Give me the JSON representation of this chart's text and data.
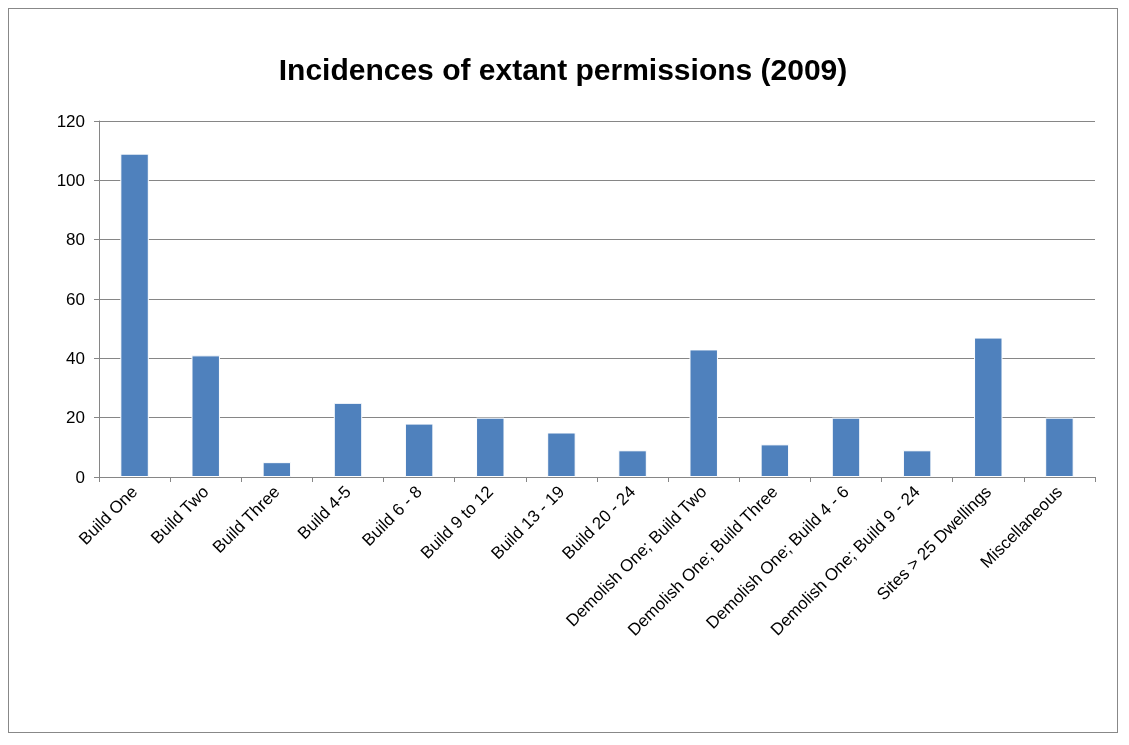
{
  "chart_data": {
    "type": "bar",
    "title": "Incidences of extant permissions (2009)",
    "categories": [
      "Build One",
      "Build Two",
      "Build Three",
      "Build 4-5",
      "Build 6 - 8",
      "Build 9 to 12",
      "Build 13 - 19",
      "Build 20 - 24",
      "Demolish One; Build Two",
      "Demolish One; Build Three",
      "Demolish One; Build 4 - 6",
      "Demolish One; Build 9 - 24",
      "Sites > 25 Dwellings",
      "Miscellaneous"
    ],
    "values": [
      109,
      41,
      5,
      25,
      18,
      20,
      15,
      9,
      43,
      11,
      20,
      9,
      47,
      20
    ],
    "color": "#4f81bd",
    "ylim": [
      0,
      120
    ],
    "yticks": [
      0,
      20,
      40,
      60,
      80,
      100,
      120
    ],
    "grid": "y"
  }
}
